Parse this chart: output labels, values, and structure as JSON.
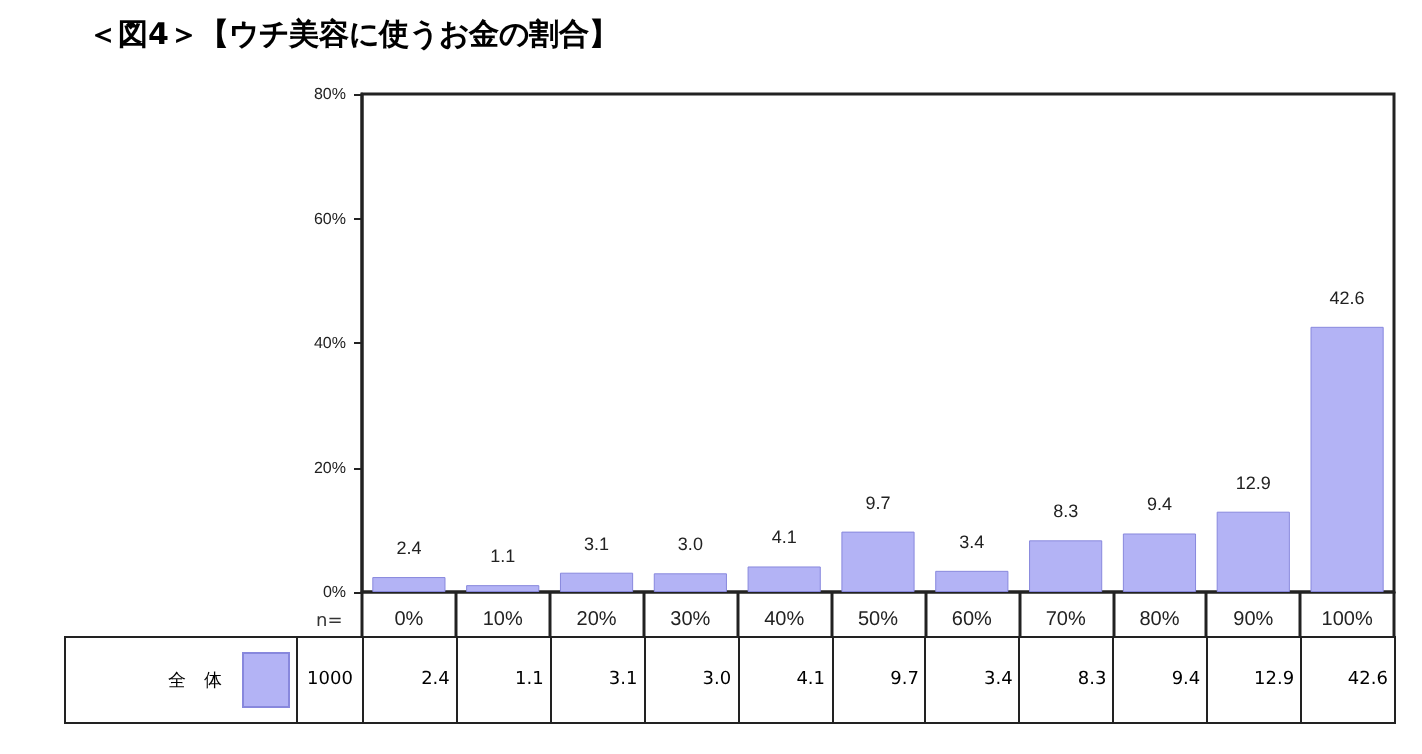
{
  "chart_data": {
    "type": "bar",
    "title": "＜図4＞【ウチ美容に使うお金の割合】",
    "categories": [
      "0%",
      "10%",
      "20%",
      "30%",
      "40%",
      "50%",
      "60%",
      "70%",
      "80%",
      "90%",
      "100%"
    ],
    "series": [
      {
        "name": "全　体",
        "color": "#b3b3f5",
        "values": [
          2.4,
          1.1,
          3.1,
          3.0,
          4.1,
          9.7,
          3.4,
          8.3,
          9.4,
          12.9,
          42.6
        ],
        "value_labels": [
          "2.4",
          "1.1",
          "3.1",
          "3.0",
          "4.1",
          "9.7",
          "3.4",
          "8.3",
          "9.4",
          "12.9",
          "42.6"
        ]
      }
    ],
    "ylim": [
      0,
      80
    ],
    "yticks": [
      {
        "value": 0,
        "label": "0%"
      },
      {
        "value": 20,
        "label": "20%"
      },
      {
        "value": 40,
        "label": "40%"
      },
      {
        "value": 60,
        "label": "60%"
      },
      {
        "value": 80,
        "label": "80%"
      }
    ],
    "grid": false,
    "legend": "bottom left",
    "data_labels": true,
    "annotations": [
      "n=",
      "1000",
      "2.4",
      "1.1",
      "3.1",
      "3.0",
      "4.1",
      "9.7",
      "3.4",
      "8.3",
      "9.4",
      "12.9",
      "42.6"
    ]
  }
}
